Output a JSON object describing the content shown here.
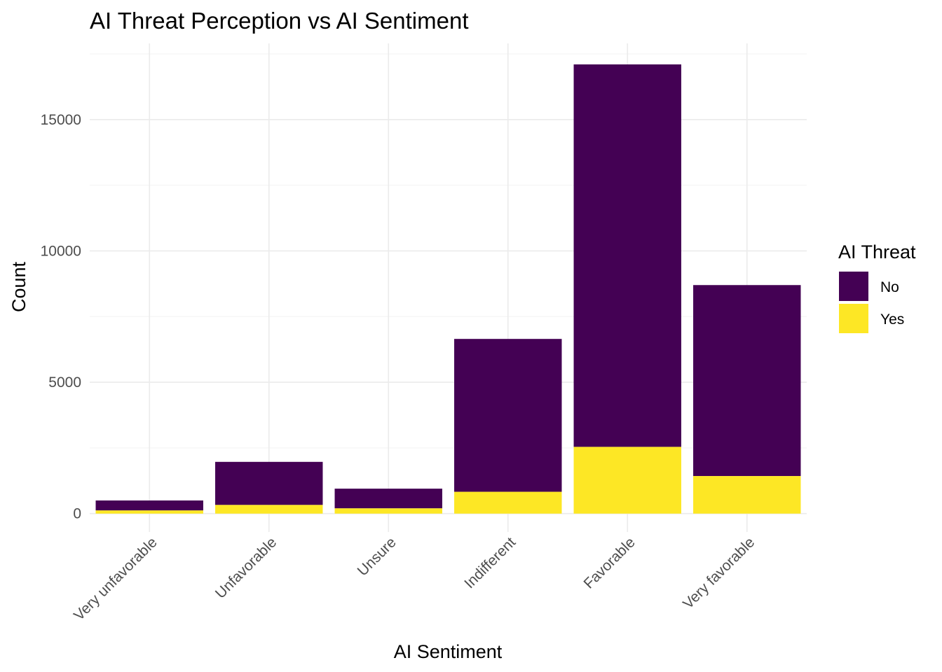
{
  "chart_data": {
    "type": "bar",
    "stacked": true,
    "title": "AI Threat Perception vs AI Sentiment",
    "xlabel": "AI Sentiment",
    "ylabel": "Count",
    "categories": [
      "Very unfavorable",
      "Unfavorable",
      "Unsure",
      "Indifferent",
      "Favorable",
      "Very favorable"
    ],
    "series": [
      {
        "name": "Yes",
        "values": [
          120,
          330,
          200,
          830,
          2540,
          1430
        ]
      },
      {
        "name": "No",
        "values": [
          380,
          1640,
          750,
          5820,
          14560,
          7270
        ]
      }
    ],
    "ylim": [
      -700,
      17900
    ],
    "yticks": [
      0,
      5000,
      10000,
      15000
    ],
    "ytick_labels": [
      "0",
      "5000",
      "10000",
      "15000"
    ],
    "grid": true,
    "legend": {
      "title": "AI Threat",
      "position": "right",
      "entries": [
        "No",
        "Yes"
      ]
    },
    "colors": {
      "No": "#440154",
      "Yes": "#FDE725"
    }
  }
}
